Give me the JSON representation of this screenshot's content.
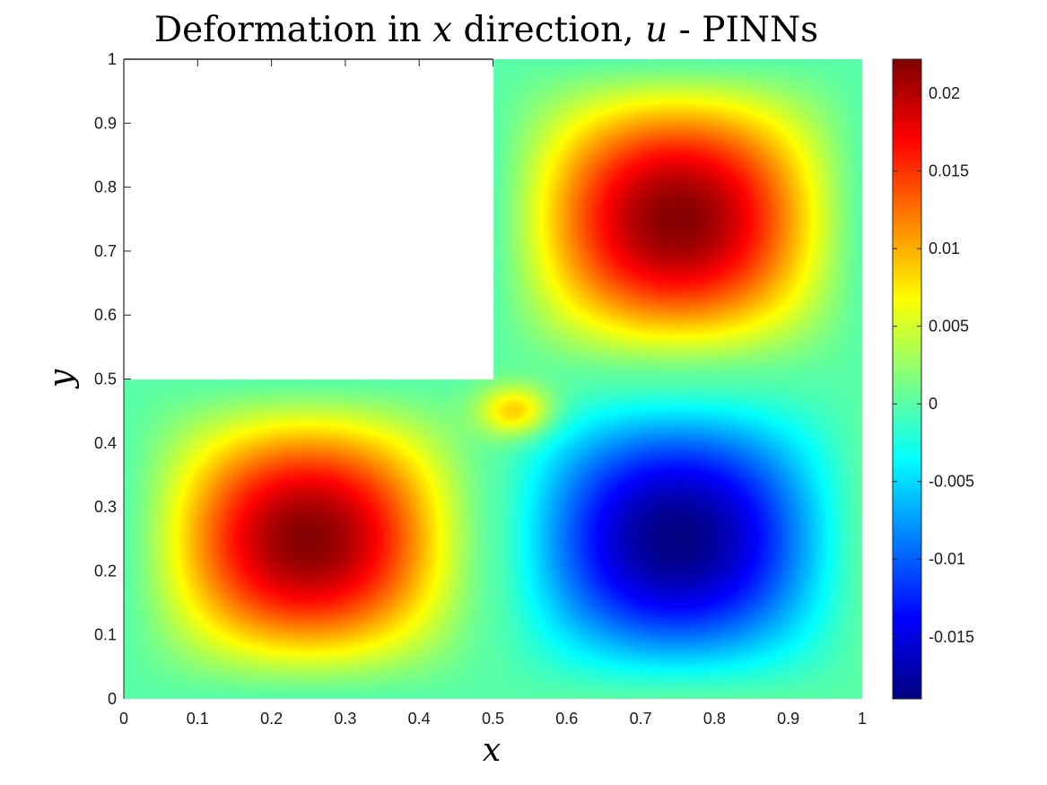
{
  "chart_data": {
    "type": "heatmap",
    "title_text": "Deformation in ",
    "title_var1": "x",
    "title_mid": " direction, ",
    "title_var2": "u",
    "title_end": " - PINNs",
    "xlabel": "x",
    "ylabel": "y",
    "xlim": [
      0,
      1
    ],
    "ylim": [
      0,
      1
    ],
    "x_ticks": [
      0,
      0.1,
      0.2,
      0.3,
      0.4,
      0.5,
      0.6,
      0.7,
      0.8,
      0.9,
      1
    ],
    "x_tick_labels": [
      "0",
      "0.1",
      "0.2",
      "0.3",
      "0.4",
      "0.5",
      "0.6",
      "0.7",
      "0.8",
      "0.9",
      "1"
    ],
    "y_ticks": [
      0,
      0.1,
      0.2,
      0.3,
      0.4,
      0.5,
      0.6,
      0.7,
      0.8,
      0.9,
      1
    ],
    "y_tick_labels": [
      "0",
      "0.1",
      "0.2",
      "0.3",
      "0.4",
      "0.5",
      "0.6",
      "0.7",
      "0.8",
      "0.9",
      "1"
    ],
    "excluded_region": {
      "x": [
        0,
        0.5
      ],
      "y": [
        0.5,
        1
      ]
    },
    "colormap": "jet",
    "colorbar": {
      "min": -0.019,
      "max": 0.0222,
      "ticks": [
        -0.015,
        -0.01,
        -0.005,
        0,
        0.005,
        0.01,
        0.015,
        0.02
      ],
      "tick_labels": [
        "-0.015",
        "-0.01",
        "-0.005",
        "0",
        "0.005",
        "0.01",
        "0.015",
        "0.02"
      ]
    },
    "field_extrema": [
      {
        "x": 0.27,
        "y": 0.21,
        "u": 0.022
      },
      {
        "x": 0.77,
        "y": 0.73,
        "u": 0.022
      },
      {
        "x": 0.78,
        "y": 0.19,
        "u": -0.019
      },
      {
        "x": 0.53,
        "y": 0.45,
        "u": 0.009
      }
    ]
  }
}
